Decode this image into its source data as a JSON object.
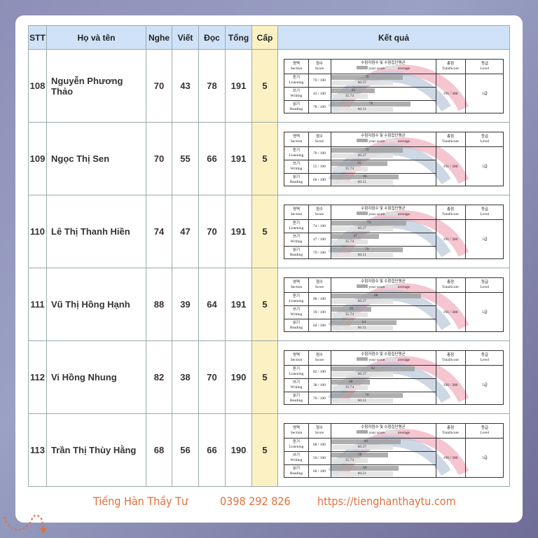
{
  "headers": {
    "stt": "STT",
    "name": "Họ và tên",
    "nghe": "Nghe",
    "viet": "Viết",
    "doc": "Đọc",
    "tong": "Tổng",
    "cap": "Cấp",
    "ketqua": "Kết quả"
  },
  "result_labels": {
    "section_ko": "영역",
    "section": "Section",
    "score_ko": "점수",
    "score": "Score",
    "chart_ko": "수험자점수 및 수험집단평균",
    "your_score": "your score",
    "average": "average",
    "total_ko": "총점",
    "total": "TotalScore",
    "level_ko": "등급",
    "level": "Level",
    "listening_ko": "듣기",
    "listening": "Listening",
    "writing_ko": "쓰기",
    "writing": "Writing",
    "reading_ko": "읽기",
    "reading": "Reading",
    "level_value": "5급"
  },
  "averages": {
    "listening": "60.37",
    "writing": "35.74",
    "reading": "60.51"
  },
  "rows": [
    {
      "stt": "108",
      "name": "Nguyễn Phương Thảo",
      "nghe": "70",
      "viet": "43",
      "doc": "78",
      "tong": "191",
      "cap": "5"
    },
    {
      "stt": "109",
      "name": "Ngọc Thị Sen",
      "nghe": "70",
      "viet": "55",
      "doc": "66",
      "tong": "191",
      "cap": "5"
    },
    {
      "stt": "110",
      "name": "Lê Thị Thanh Hiền",
      "nghe": "74",
      "viet": "47",
      "doc": "70",
      "tong": "191",
      "cap": "5"
    },
    {
      "stt": "111",
      "name": "Vũ Thị Hồng Hạnh",
      "nghe": "88",
      "viet": "39",
      "doc": "64",
      "tong": "191",
      "cap": "5"
    },
    {
      "stt": "112",
      "name": "Vi Hồng Nhung",
      "nghe": "82",
      "viet": "38",
      "doc": "70",
      "tong": "190",
      "cap": "5"
    },
    {
      "stt": "113",
      "name": "Trần Thị Thùy Hằng",
      "nghe": "68",
      "viet": "56",
      "doc": "66",
      "tong": "190",
      "cap": "5"
    }
  ],
  "footer": {
    "brand": "Tiếng Hàn Thầy Tư",
    "phone": "0398 292 826",
    "website": "https://tienghanthaytu.com"
  },
  "colors": {
    "header_bg": "#cfe2f8",
    "level_col": "#fbf1c3",
    "footer_text": "#e0703e"
  }
}
